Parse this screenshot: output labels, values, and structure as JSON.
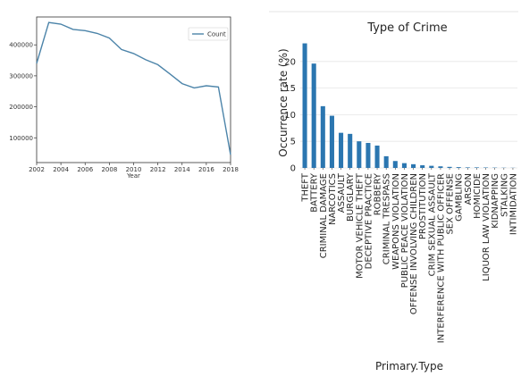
{
  "colors": {
    "line": "#4c84a9",
    "bar": "#2b76b0",
    "grid": "#e6e6e6"
  },
  "chart_data": [
    {
      "type": "line",
      "title": "",
      "xlabel": "Year",
      "ylabel": "",
      "legend": [
        "Count"
      ],
      "legend_position": "top-right",
      "x": [
        2002,
        2003,
        2004,
        2005,
        2006,
        2007,
        2008,
        2009,
        2010,
        2011,
        2012,
        2013,
        2014,
        2015,
        2016,
        2017,
        2018
      ],
      "series": [
        {
          "name": "Count",
          "values": [
            340000,
            472000,
            467000,
            450000,
            446000,
            437000,
            422000,
            385000,
            372000,
            352000,
            336000,
            306000,
            275000,
            261000,
            268000,
            264000,
            45000
          ]
        }
      ],
      "xlim": [
        2002,
        2018
      ],
      "ylim": [
        20000,
        490000
      ],
      "xticks": [
        2002,
        2004,
        2006,
        2008,
        2010,
        2012,
        2014,
        2016,
        2018
      ],
      "yticks": [
        100000,
        200000,
        300000,
        400000
      ],
      "ytick_labels": [
        "100000",
        "200000",
        "300000",
        "400000"
      ],
      "grid": false
    },
    {
      "type": "bar",
      "title": "Type of Crime",
      "xlabel": "Primary.Type",
      "ylabel": "Occurrence rate (%)",
      "categories": [
        "THEFT",
        "BATTERY",
        "CRIMINAL DAMAGE",
        "NARCOTICS",
        "ASSAULT",
        "BURGLARY",
        "MOTOR VEHICLE THEFT",
        "DECEPTIVE PRACTICE",
        "ROBBERY",
        "CRIMINAL TRESPASS",
        "WEAPONS VIOLATION",
        "PUBLIC PEACE VIOLATION",
        "OFFENSE INVOLVING CHILDREN",
        "PROSTITUTION",
        "CRIM SEXUAL ASSAULT",
        "INTERFERENCE WITH PUBLIC OFFICER",
        "SEX OFFENSE",
        "GAMBLING",
        "ARSON",
        "HOMICIDE",
        "LIQUOR LAW VIOLATION",
        "KIDNAPPING",
        "STALKING",
        "INTIMIDATION"
      ],
      "values": [
        23.4,
        19.6,
        11.6,
        9.8,
        6.6,
        6.4,
        5.0,
        4.7,
        4.2,
        2.2,
        1.3,
        0.9,
        0.7,
        0.5,
        0.4,
        0.3,
        0.2,
        0.15,
        0.1,
        0.1,
        0.08,
        0.06,
        0.04,
        0.03
      ],
      "ylim": [
        0,
        25
      ],
      "yticks": [
        0,
        5,
        10,
        15,
        20
      ],
      "grid": true
    }
  ]
}
